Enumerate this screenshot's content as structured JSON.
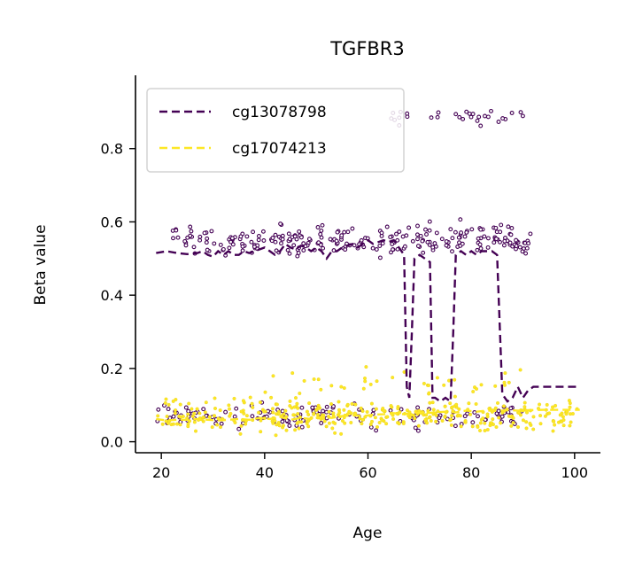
{
  "chart_data": {
    "type": "line",
    "title": "TGFBR3",
    "xlabel": "Age",
    "ylabel": "Beta value",
    "xlim": [
      15,
      105
    ],
    "ylim": [
      -0.03,
      1.0
    ],
    "xticks": [
      20,
      40,
      60,
      80,
      100
    ],
    "yticks": [
      0.0,
      0.2,
      0.4,
      0.6,
      0.8
    ],
    "xtick_labels": [
      "20",
      "40",
      "60",
      "80",
      "100"
    ],
    "ytick_labels": [
      "0.0",
      "0.2",
      "0.4",
      "0.6",
      "0.8"
    ],
    "legend_position": "top-left",
    "grid": false,
    "series": [
      {
        "name": "cg13078798",
        "color": "#440154",
        "line_style": "dashed",
        "x": [
          19,
          21,
          23,
          25,
          27,
          28,
          29,
          30,
          31,
          32,
          33,
          34,
          35,
          36,
          37,
          38,
          39,
          40,
          41,
          42,
          43,
          44,
          45,
          46,
          47,
          48,
          49,
          50,
          51,
          52,
          53,
          54,
          55,
          56,
          57,
          58,
          59,
          60,
          61,
          62,
          63,
          64,
          65,
          66,
          67,
          67.5,
          68,
          68.5,
          69,
          70,
          71,
          72,
          72.5,
          73,
          74,
          75,
          76,
          76.5,
          77,
          78,
          79,
          80,
          81,
          82,
          83,
          84,
          85,
          86,
          87,
          88,
          89,
          90,
          91,
          92,
          94,
          96,
          98,
          101
        ],
        "y": [
          0.515,
          0.52,
          0.515,
          0.512,
          0.515,
          0.52,
          0.51,
          0.505,
          0.52,
          0.51,
          0.52,
          0.51,
          0.51,
          0.52,
          0.515,
          0.52,
          0.525,
          0.53,
          0.52,
          0.51,
          0.52,
          0.54,
          0.53,
          0.525,
          0.535,
          0.53,
          0.52,
          0.53,
          0.52,
          0.5,
          0.52,
          0.52,
          0.53,
          0.535,
          0.54,
          0.53,
          0.54,
          0.55,
          0.54,
          0.545,
          0.55,
          0.545,
          0.55,
          0.53,
          0.51,
          0.15,
          0.12,
          0.3,
          0.5,
          0.51,
          0.5,
          0.49,
          0.12,
          0.12,
          0.11,
          0.12,
          0.11,
          0.3,
          0.51,
          0.52,
          0.51,
          0.52,
          0.51,
          0.52,
          0.52,
          0.52,
          0.51,
          0.13,
          0.11,
          0.12,
          0.15,
          0.12,
          0.14,
          0.15,
          0.15,
          0.15,
          0.15,
          0.15
        ]
      },
      {
        "name": "cg17074213",
        "color": "#fde725",
        "line_style": "dashed",
        "x": [
          19,
          21,
          23,
          25,
          27,
          29,
          31,
          33,
          35,
          37,
          39,
          41,
          43,
          45,
          47,
          49,
          51,
          53,
          55,
          57,
          59,
          61,
          63,
          65,
          67,
          69,
          71,
          73,
          75,
          77,
          79,
          81,
          83,
          85,
          87,
          89,
          91,
          94,
          97,
          101
        ],
        "y": [
          0.062,
          0.058,
          0.06,
          0.06,
          0.062,
          0.06,
          0.058,
          0.06,
          0.062,
          0.06,
          0.065,
          0.062,
          0.068,
          0.06,
          0.065,
          0.062,
          0.068,
          0.065,
          0.07,
          0.072,
          0.07,
          0.074,
          0.075,
          0.078,
          0.075,
          0.08,
          0.078,
          0.08,
          0.082,
          0.08,
          0.085,
          0.082,
          0.085,
          0.084,
          0.086,
          0.085,
          0.086,
          0.087,
          0.087,
          0.087
        ]
      }
    ],
    "scatter_clusters": [
      {
        "series": "cg13078798",
        "color": "#440154",
        "x_range": [
          22,
          92
        ],
        "y_center": 0.55,
        "y_spread": 0.04,
        "count": 260
      },
      {
        "series": "cg13078798",
        "color": "#440154",
        "x_range": [
          64,
          90
        ],
        "y_center": 0.89,
        "y_spread": 0.025,
        "count": 30
      },
      {
        "series": "cg13078798",
        "color": "#440154",
        "x_range": [
          19,
          90
        ],
        "y_center": 0.07,
        "y_spread": 0.03,
        "count": 140
      },
      {
        "series": "cg17074213",
        "color": "#fde725",
        "x_range": [
          19,
          101
        ],
        "y_center": 0.07,
        "y_spread": 0.04,
        "count": 380
      },
      {
        "series": "cg17074213",
        "color": "#fde725",
        "x_range": [
          40,
          90
        ],
        "y_center": 0.16,
        "y_spread": 0.04,
        "count": 40
      }
    ]
  }
}
